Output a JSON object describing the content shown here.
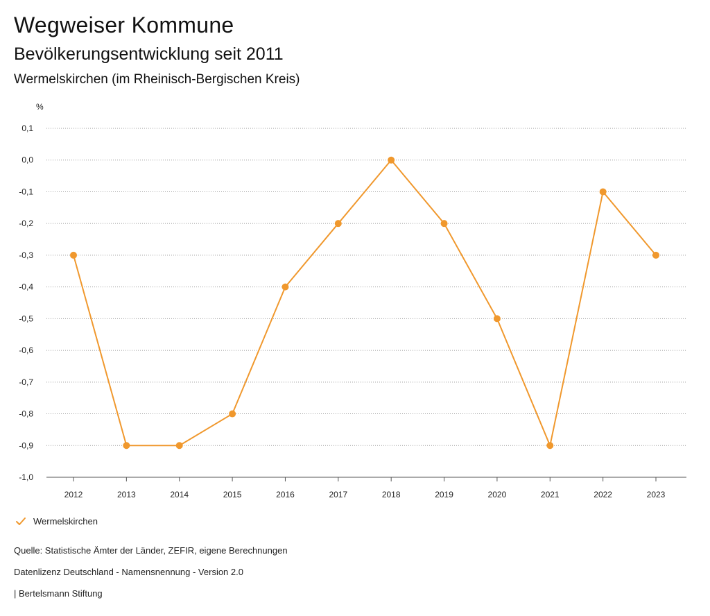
{
  "header": {
    "title": "Wegweiser Kommune",
    "subtitle": "Bevölkerungsentwicklung seit 2011",
    "region": "Wermelskirchen (im Rheinisch-Bergischen Kreis)"
  },
  "colors": {
    "series": "#f0982d",
    "grid": "#9a9a9a",
    "axis": "#555555"
  },
  "chart_data": {
    "type": "line",
    "title": "Bevölkerungsentwicklung seit 2011",
    "xlabel": "",
    "ylabel": "%",
    "ylim": [
      -1.0,
      0.1
    ],
    "y_ticks": [
      0.1,
      0.0,
      -0.1,
      -0.2,
      -0.3,
      -0.4,
      -0.5,
      -0.6,
      -0.7,
      -0.8,
      -0.9,
      -1.0
    ],
    "y_tick_labels": [
      "0,1",
      "0,0",
      "-0,1",
      "-0,2",
      "-0,3",
      "-0,4",
      "-0,5",
      "-0,6",
      "-0,7",
      "-0,8",
      "-0,9",
      "-1,0"
    ],
    "categories": [
      "2012",
      "2013",
      "2014",
      "2015",
      "2016",
      "2017",
      "2018",
      "2019",
      "2020",
      "2021",
      "2022",
      "2023"
    ],
    "series": [
      {
        "name": "Wermelskirchen",
        "values": [
          -0.3,
          -0.9,
          -0.9,
          -0.8,
          -0.4,
          -0.2,
          0.0,
          -0.2,
          -0.5,
          -0.9,
          -0.1,
          -0.3
        ]
      }
    ],
    "grid": true,
    "legend": "bottom-left"
  },
  "legend": {
    "label": "Wermelskirchen"
  },
  "footer": {
    "source": "Quelle: Statistische Ämter der Länder, ZEFIR, eigene Berechnungen",
    "license": "Datenlizenz Deutschland - Namensnennung - Version 2.0",
    "publisher": "| Bertelsmann Stiftung"
  }
}
